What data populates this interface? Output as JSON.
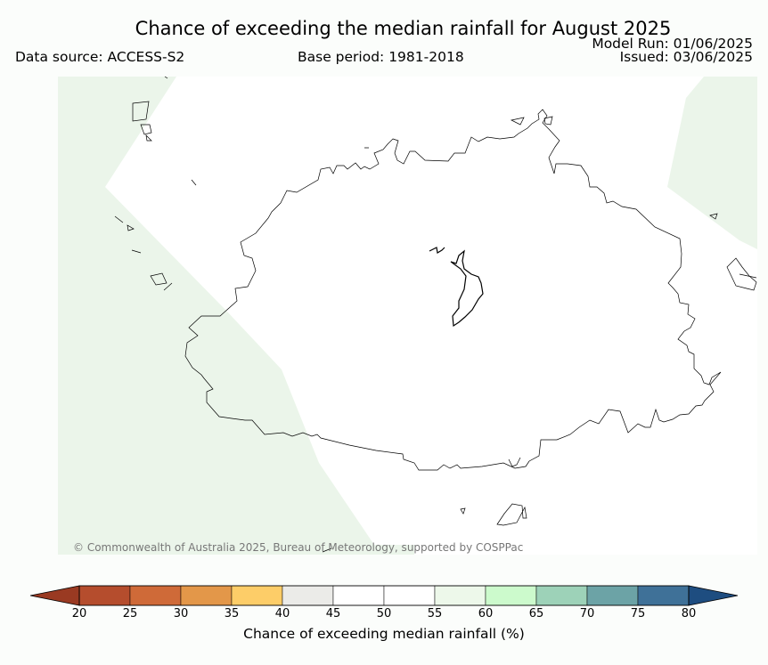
{
  "title": "Chance of exceeding the median rainfall for August 2025",
  "data_source": "Data source: ACCESS-S2",
  "base_period": "Base period: 1981-2018",
  "model_run": "Model Run: 01/06/2025",
  "issued": "Issued: 03/06/2025",
  "copyright": "© Commonwealth of Australia 2025, Bureau of Meteorology, supported by COSPPac",
  "colorbar": {
    "label": "Chance of exceeding median rainfall (%)",
    "ticks": [
      "20",
      "25",
      "30",
      "35",
      "40",
      "45",
      "50",
      "55",
      "60",
      "65",
      "70",
      "75",
      "80"
    ],
    "colors": [
      "#b54d2d",
      "#cf6a38",
      "#e39749",
      "#fdcd68",
      "#ebebe8",
      "#ffffff",
      "#ffffff",
      "#edf8ea",
      "#ccfacc",
      "#9dd2b8",
      "#6ca3a6",
      "#3f7198"
    ],
    "under_color": "#9a3a22",
    "over_color": "#1e4d80"
  },
  "map": {
    "background_color": "#fbfdfb",
    "fill_color_55_60": "#ebf5ea"
  }
}
